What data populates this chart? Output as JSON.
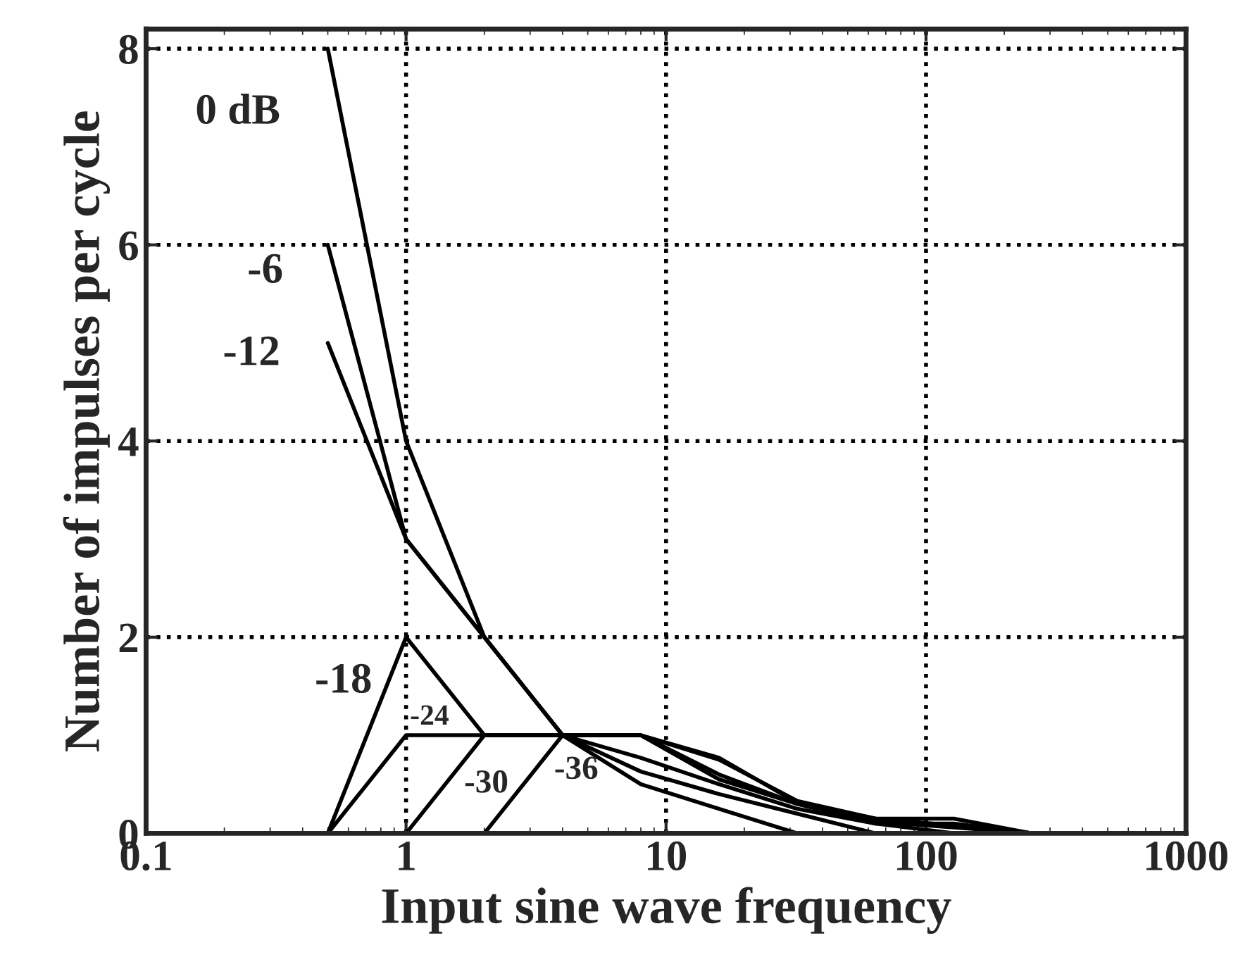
{
  "chart_data": {
    "type": "line",
    "xlabel": "Input sine wave frequency",
    "ylabel": "Number of impulses per cycle",
    "log": "x",
    "xlim": [
      0.1,
      1000
    ],
    "ylim": [
      0,
      8.2
    ],
    "xticks": [
      0.1,
      1,
      10,
      100,
      1000
    ],
    "yticks": [
      0,
      2,
      4,
      6,
      8
    ],
    "grid": true,
    "legend": false,
    "marker": "none",
    "line_style": "solid",
    "series": [
      {
        "name": "0 dB",
        "color": "#000000",
        "x": [
          0.5,
          1,
          2,
          4,
          8,
          16,
          32
        ],
        "values": [
          8,
          4,
          2,
          1,
          0.5,
          0.25,
          0
        ]
      },
      {
        "name": "-6",
        "color": "#000000",
        "x": [
          0.5,
          1,
          2,
          4,
          8,
          16,
          32,
          64
        ],
        "values": [
          6,
          3,
          2,
          1,
          0.63,
          0.4,
          0.2,
          0
        ]
      },
      {
        "name": "-12",
        "color": "#000000",
        "x": [
          0.5,
          1,
          2,
          4,
          8,
          16,
          32,
          64,
          128
        ],
        "values": [
          5,
          3,
          2,
          1,
          0.77,
          0.5,
          0.25,
          0.1,
          0
        ]
      },
      {
        "name": "-18",
        "color": "#000000",
        "x": [
          0.5,
          1,
          2,
          4,
          8,
          16,
          32,
          64,
          128,
          256
        ],
        "values": [
          0,
          2,
          1,
          1,
          1,
          0.55,
          0.3,
          0.12,
          0.06,
          0
        ]
      },
      {
        "name": "-24",
        "color": "#000000",
        "x": [
          0.5,
          1,
          2,
          4,
          8,
          16,
          32,
          64,
          128,
          256
        ],
        "values": [
          0,
          1,
          1,
          1,
          1,
          0.75,
          0.33,
          0.15,
          0.08,
          0
        ]
      },
      {
        "name": "-30",
        "color": "#000000",
        "x": [
          1,
          2,
          4,
          8,
          16,
          32,
          64,
          128,
          256
        ],
        "values": [
          0,
          1,
          1,
          1,
          0.77,
          0.31,
          0.15,
          0.15,
          0
        ]
      },
      {
        "name": "-36",
        "color": "#000000",
        "x": [
          2,
          4,
          8,
          16,
          32,
          64,
          128,
          256
        ],
        "values": [
          0,
          1,
          1,
          0.6,
          0.3,
          0.1,
          0.1,
          0
        ]
      }
    ]
  }
}
